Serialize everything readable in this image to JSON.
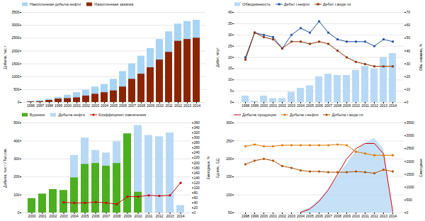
{
  "chart_data": [
    {
      "type": "bar",
      "categories": [
        "1996",
        "1997",
        "1998",
        "1999",
        "2000",
        "2001",
        "2002",
        "2003",
        "2004",
        "2005",
        "2006",
        "2007",
        "2008",
        "2009",
        "2010",
        "2011",
        "2012",
        "2013",
        "2014"
      ],
      "series": [
        {
          "name": "Накопленная добыча нефти",
          "color": "#a8d4f5",
          "values": [
            50,
            70,
            120,
            200,
            280,
            380,
            480,
            600,
            700,
            900,
            1200,
            1500,
            1800,
            2100,
            2450,
            2750,
            3050,
            3150,
            3200
          ]
        },
        {
          "name": "Накопленная закачка",
          "color": "#8b2500",
          "values": [
            20,
            30,
            80,
            130,
            150,
            180,
            250,
            320,
            380,
            450,
            600,
            900,
            1100,
            1350,
            1650,
            1950,
            2380,
            2450,
            2500
          ]
        }
      ],
      "ylabel": "Добыча, тыс.т",
      "ylim": [
        0,
        3500
      ],
      "yticks": [
        0,
        500,
        1000,
        1500,
        2000,
        2500,
        3000,
        3500
      ],
      "grid": true,
      "legend": "upper left"
    },
    {
      "type": "combo",
      "categories": [
        "1998",
        "1999",
        "2000",
        "2001",
        "2002",
        "2003",
        "2004",
        "2005",
        "2006",
        "2007",
        "2008",
        "2009",
        "2010",
        "2011",
        "2012",
        "2013",
        "2014"
      ],
      "series": [
        {
          "name": "Обводнённость",
          "type": "bar",
          "axis": "y2",
          "color": "#b8d9f5",
          "values": [
            5,
            1,
            5,
            3,
            3,
            8,
            11,
            13,
            20,
            22,
            21,
            21,
            25,
            28,
            26,
            35,
            38
          ]
        },
        {
          "name": "Дебит г.нефти",
          "type": "line",
          "color": "#1f4fa0",
          "marker": "square",
          "values": [
            20,
            31,
            30,
            29,
            24,
            30,
            33,
            31,
            36,
            31,
            28,
            27,
            27,
            27,
            25,
            28,
            27
          ]
        },
        {
          "name": "Дебит г.жидк-ти",
          "type": "line",
          "color": "#8b3000",
          "marker": "square",
          "values": [
            19,
            31,
            29,
            28,
            24,
            27,
            27,
            26,
            27,
            26,
            23,
            20,
            18,
            17,
            16,
            16,
            16
          ]
        }
      ],
      "ylabel": "Дебит, ч/сут",
      "y2label": "Обв. скважин, %",
      "ylim": [
        0,
        40
      ],
      "yticks": [
        0,
        5,
        10,
        15,
        20,
        25,
        30,
        35,
        40
      ],
      "y2lim": [
        0,
        70
      ],
      "y2ticks": [
        0,
        10,
        20,
        30,
        40,
        50,
        60,
        70
      ],
      "grid": true,
      "legend": "upper left"
    },
    {
      "type": "combo",
      "categories": [
        "2000",
        "2001",
        "2002",
        "2003",
        "2004",
        "2005",
        "2006",
        "2007",
        "2008",
        "2009",
        "2010",
        "2011",
        "2012",
        "2013",
        "2014"
      ],
      "series": [
        {
          "name": "Бурение",
          "type": "bar",
          "color": "#4caf20",
          "values": [
            80,
            105,
            130,
            125,
            195,
            270,
            275,
            260,
            275,
            440,
            115,
            0,
            0,
            0,
            0
          ]
        },
        {
          "name": "Добыча нефти",
          "type": "bar",
          "axis": "y2",
          "color": "#b8d9f5",
          "values": [
            20,
            30,
            30,
            70,
            230,
            300,
            250,
            240,
            285,
            300,
            350,
            310,
            305,
            320,
            30
          ]
        },
        {
          "name": "Коэффициент извлечения",
          "type": "line",
          "axis": "y2",
          "color": "#cc0000",
          "marker": "circle",
          "values": [
            null,
            null,
            null,
            42,
            40,
            40,
            43,
            40,
            35,
            65,
            65,
            70,
            68,
            70,
            120
          ]
        }
      ],
      "ylabel": "Добыча, тыс.т / Тыс.скв.",
      "y2label": "Ежегодные, %",
      "ylim": [
        0,
        500
      ],
      "yticks": [
        0,
        100,
        200,
        300,
        400,
        500
      ],
      "y2lim": [
        0,
        360
      ],
      "y2ticks": [
        0,
        20,
        40,
        60,
        80,
        100,
        120,
        140,
        160,
        180,
        200,
        220,
        240,
        260,
        280,
        300,
        320,
        340,
        360
      ],
      "grid": true,
      "legend": "upper left"
    },
    {
      "type": "combo",
      "categories": [
        "1998",
        "1999",
        "2000",
        "2001",
        "2002",
        "2003",
        "2004",
        "2005",
        "2006",
        "2007",
        "2008",
        "2009",
        "2010",
        "2011",
        "2012",
        "2013",
        "2014"
      ],
      "series": [
        {
          "type": "area",
          "axis": "y2",
          "color": "#b8d9f5",
          "values": [
            null,
            null,
            null,
            null,
            null,
            null,
            50,
            200,
            500,
            900,
            1400,
            1900,
            2400,
            2700,
            2900,
            2500,
            100
          ]
        },
        {
          "name": "Добыча продукции",
          "type": "line",
          "axis": "y2",
          "color": "#cc0000",
          "values": [
            null,
            null,
            null,
            null,
            null,
            null,
            20,
            150,
            450,
            900,
            1500,
            2100,
            2500,
            2700,
            2700,
            2300,
            50
          ]
        },
        {
          "name": "Добыча г.нефти",
          "type": "line",
          "color": "#e07800",
          "marker": "circle",
          "values": [
            235,
            240,
            235,
            235,
            238,
            238,
            238,
            238,
            238,
            238,
            240,
            238,
            220,
            215,
            210,
            210,
            210
          ]
        },
        {
          "name": "Добыча г.жидк-ти",
          "type": "line",
          "color": "#b05000",
          "marker": "circle",
          "values": [
            185,
            195,
            200,
            195,
            180,
            175,
            168,
            165,
            165,
            163,
            163,
            163,
            165,
            163,
            160,
            170,
            165
          ]
        }
      ],
      "ylabel": "Ед.изм., ЕД.",
      "y2label": "Ежегодные",
      "ylim": [
        50,
        300
      ],
      "yticks": [
        50,
        100,
        150,
        200,
        250,
        300
      ],
      "y2lim": [
        0,
        3500
      ],
      "y2ticks": [
        0,
        500,
        1000,
        1500,
        2000,
        2500,
        3000,
        3500
      ],
      "grid": true,
      "legend": "upper left"
    }
  ]
}
